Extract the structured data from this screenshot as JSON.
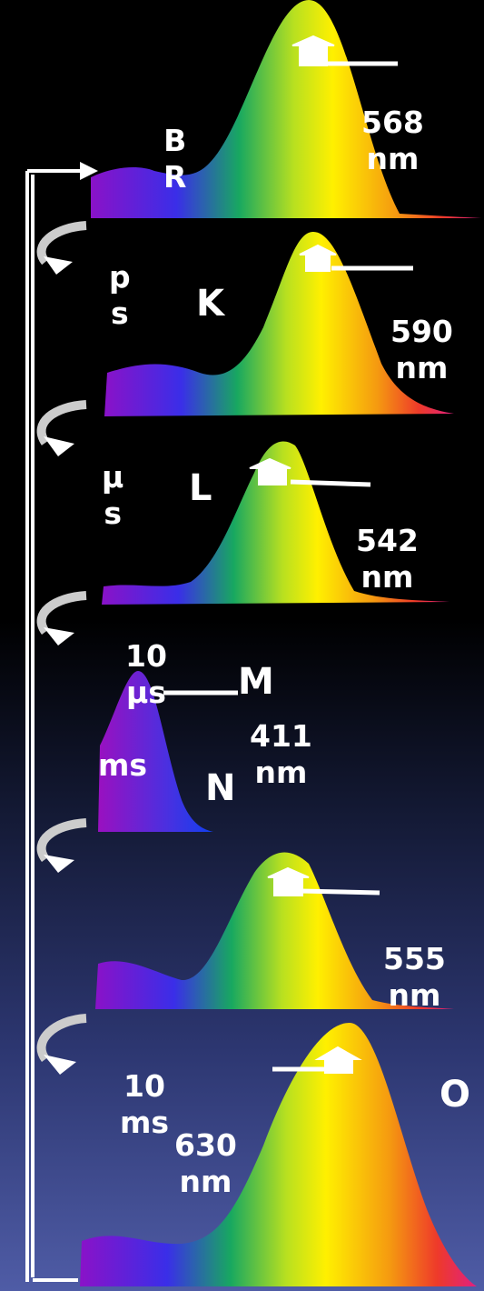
{
  "states": [
    {
      "name": "B R",
      "peak": "568 nm"
    },
    {
      "name": "K",
      "lifetime": "p s",
      "peak": "590 nm"
    },
    {
      "name": "L",
      "lifetime": "μ s",
      "peak": "542 nm"
    },
    {
      "name": "M",
      "lifetime": "10 μs",
      "peak": "411 nm"
    },
    {
      "name": "N",
      "lifetime": "ms",
      "peak": "555 nm"
    },
    {
      "name": "O",
      "lifetime": "10 ms",
      "peak": "630 nm"
    }
  ]
}
